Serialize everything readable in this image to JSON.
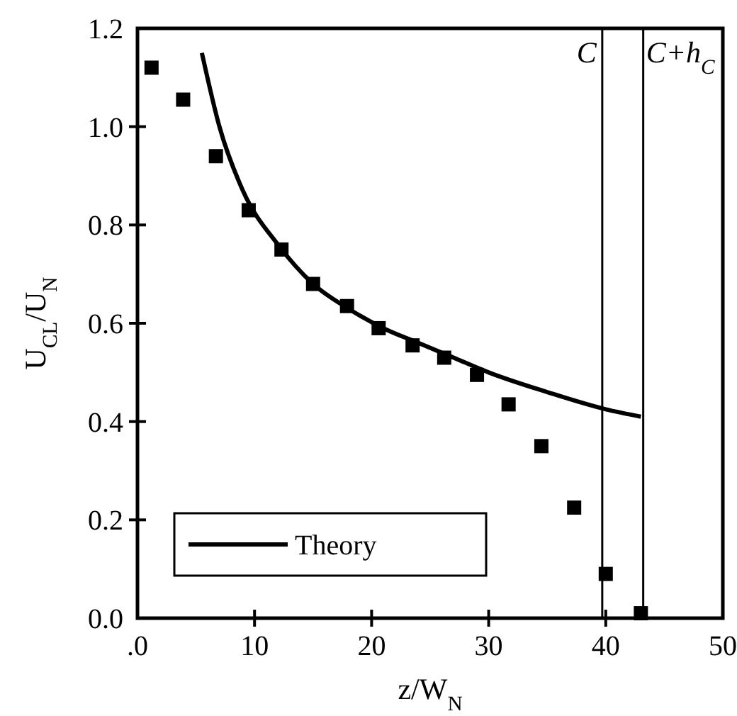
{
  "chart_data": {
    "type": "scatter",
    "xlabel": "z/W$_{N}$",
    "ylabel": "U$_{CL}$/U$_{N}$",
    "xlim": [
      0,
      50
    ],
    "xticks": [
      {
        "value": 0,
        "label": ".0"
      },
      10,
      20,
      30,
      40,
      50
    ],
    "ylim": [
      0,
      1.2
    ],
    "yticks": [
      {
        "value": 0,
        "label": "0.0"
      },
      0.2,
      0.4,
      0.6,
      0.8,
      {
        "value": 1,
        "label": "1.0"
      },
      1.2
    ],
    "legend": "bottom left",
    "grid": false,
    "series": [
      {
        "marker": "square",
        "color": "#000000",
        "x": [
          1.2,
          3.9,
          6.7,
          9.5,
          12.3,
          15,
          17.9,
          20.6,
          23.5,
          26.2,
          29,
          31.7,
          34.5,
          37.3,
          40,
          43
        ],
        "values": [
          1.12,
          1.055,
          0.94,
          0.83,
          0.75,
          0.68,
          0.635,
          0.59,
          0.555,
          0.53,
          0.495,
          0.435,
          0.35,
          0.225,
          0.09,
          0.01
        ]
      },
      {
        "type": "line",
        "name": "Theory",
        "color": "#000000",
        "line_style": "solid",
        "x": [
          5.5,
          7,
          9,
          12,
          15,
          18,
          21,
          24,
          27,
          30,
          35,
          40,
          43
        ],
        "values": [
          1.15,
          1.0,
          0.87,
          0.76,
          0.68,
          0.63,
          0.59,
          0.56,
          0.53,
          0.5,
          0.46,
          0.425,
          0.41
        ]
      }
    ],
    "ref_lines": [
      {
        "axis": "x",
        "value": 39.7,
        "label": "C"
      },
      {
        "axis": "x",
        "value": 43.2,
        "label": "C+h$_{C}$"
      }
    ]
  }
}
